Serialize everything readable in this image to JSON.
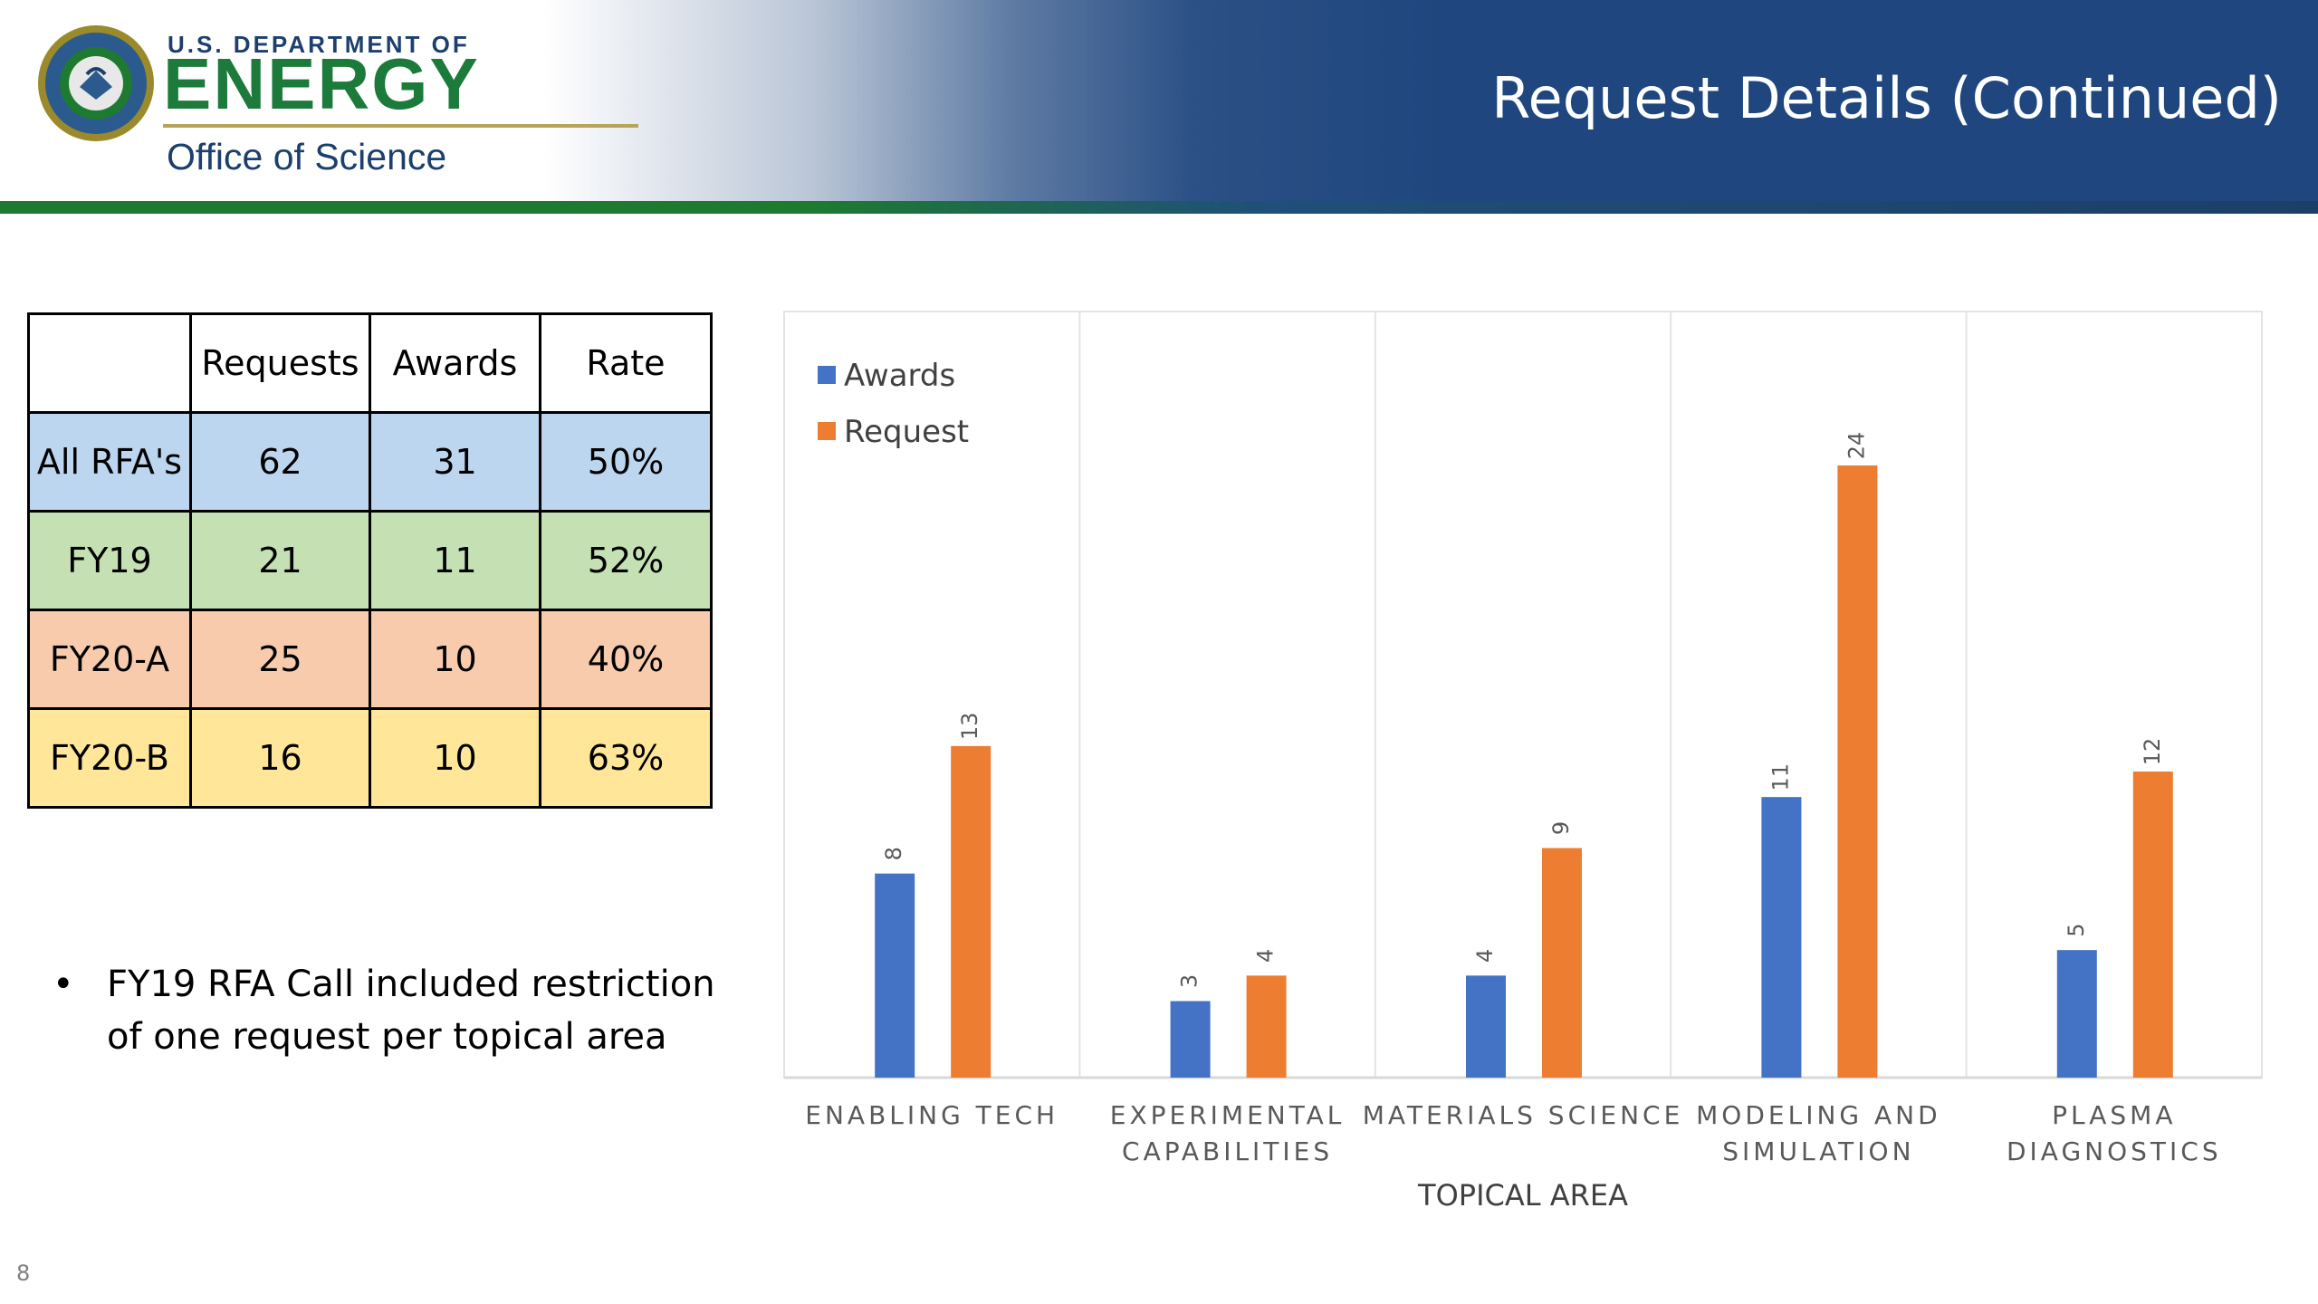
{
  "header": {
    "logo_top": "U.S. DEPARTMENT OF",
    "logo_main": "ENERGY",
    "logo_sub": "Office of Science",
    "title": "Request Details (Continued)"
  },
  "colors": {
    "header_blue": "#1f467e",
    "header_green": "#1e7a31",
    "awards_bar": "#4472c4",
    "request_bar": "#ed7d31",
    "row_all": "#bcd6ef",
    "row_fy19": "#c5e0b3",
    "row_fy20a": "#f8cbad",
    "row_fy20b": "#ffe699"
  },
  "table": {
    "headers": [
      "",
      "Requests",
      "Awards",
      "Rate"
    ],
    "rows": [
      {
        "label": "All RFA's",
        "requests": "62",
        "awards": "31",
        "rate": "50%"
      },
      {
        "label": "FY19",
        "requests": "21",
        "awards": "11",
        "rate": "52%"
      },
      {
        "label": "FY20-A",
        "requests": "25",
        "awards": "10",
        "rate": "40%"
      },
      {
        "label": "FY20-B",
        "requests": "16",
        "awards": "10",
        "rate": "63%"
      }
    ]
  },
  "note": {
    "bullet": "•",
    "text": "FY19 RFA Call included restriction of one request per topical area"
  },
  "page_number": "8",
  "chart_data": {
    "type": "bar",
    "title": "",
    "xlabel": "TOPICAL AREA",
    "ylabel": "",
    "ylim": [
      0,
      24
    ],
    "grid": "vertical category separators",
    "legend_position": "top-left",
    "categories": [
      [
        "ENABLING TECH"
      ],
      [
        "EXPERIMENTAL",
        "CAPABILITIES"
      ],
      [
        "MATERIALS SCIENCE"
      ],
      [
        "MODELING AND",
        "SIMULATION"
      ],
      [
        "PLASMA",
        "DIAGNOSTICS"
      ]
    ],
    "series": [
      {
        "name": "Awards",
        "color": "#4472c4",
        "values": [
          8,
          3,
          4,
          11,
          5
        ]
      },
      {
        "name": "Request",
        "color": "#ed7d31",
        "values": [
          13,
          4,
          9,
          24,
          12
        ]
      }
    ],
    "data_labels": "rotated, above bars"
  }
}
